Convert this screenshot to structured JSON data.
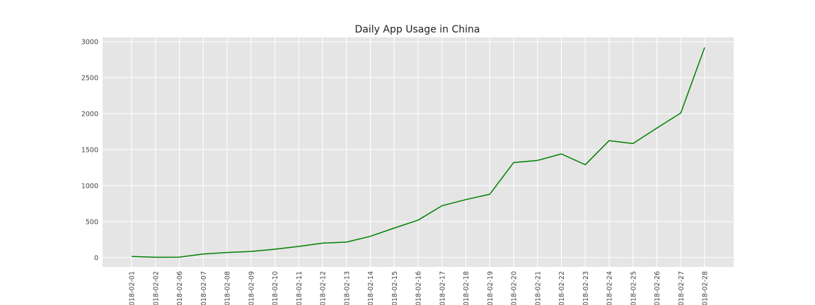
{
  "chart_data": {
    "type": "line",
    "title": "Daily App Usage in China",
    "xlabel": "",
    "ylabel": "",
    "x": [
      "2018-02-01",
      "2018-02-02",
      "2018-02-06",
      "2018-02-07",
      "2018-02-08",
      "2018-02-09",
      "2018-02-10",
      "2018-02-11",
      "2018-02-12",
      "2018-02-13",
      "2018-02-14",
      "2018-02-15",
      "2018-02-16",
      "2018-02-17",
      "2018-02-18",
      "2018-02-19",
      "2018-02-20",
      "2018-02-21",
      "2018-02-22",
      "2018-02-23",
      "2018-02-24",
      "2018-02-25",
      "2018-02-26",
      "2018-02-27",
      "2018-02-28"
    ],
    "series": [
      {
        "color": "#008000",
        "values": [
          15,
          3,
          5,
          50,
          70,
          85,
          115,
          155,
          200,
          215,
          295,
          410,
          520,
          720,
          805,
          880,
          1320,
          1350,
          1440,
          1290,
          1625,
          1585,
          1800,
          2010,
          2920
        ]
      }
    ],
    "yticks": [
      0,
      500,
      1000,
      1500,
      2000,
      2500,
      3000
    ],
    "ylim": [
      -130,
      3060
    ],
    "grid": true,
    "background_color": "#e5e5e5",
    "grid_color": "#ffffff",
    "legend": "none"
  }
}
